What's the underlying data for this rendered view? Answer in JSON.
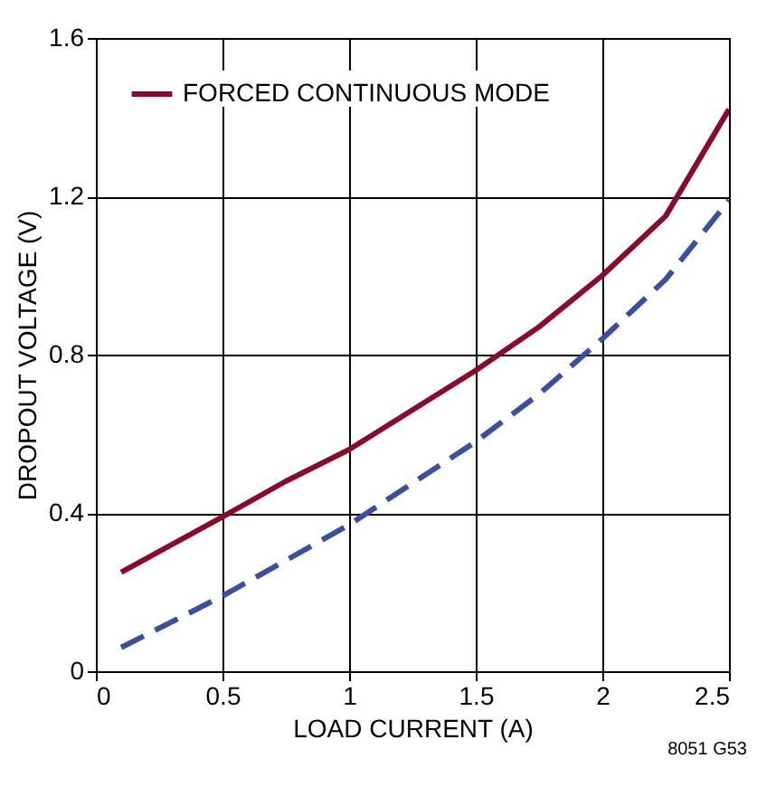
{
  "chart_data": {
    "type": "line",
    "xlabel": "LOAD CURRENT (A)",
    "ylabel": "DROPOUT VOLTAGE (V)",
    "xlim": [
      0,
      2.5
    ],
    "xticks": [
      0,
      0.5,
      1,
      1.5,
      2,
      2.5
    ],
    "ylim": [
      0,
      1.6
    ],
    "yticks": [
      0,
      0.4,
      0.8,
      1.2,
      1.6
    ],
    "grid": true,
    "legend": "top left",
    "series": [
      {
        "name": "FORCED CONTINUOUS MODE",
        "color": "#8b0a2a",
        "line_style": "solid",
        "x": [
          0.1,
          0.5,
          0.75,
          1,
          1.25,
          1.5,
          1.75,
          2,
          2.25,
          2.5
        ],
        "values": [
          0.25,
          0.39,
          0.48,
          0.56,
          0.66,
          0.76,
          0.87,
          1.0,
          1.15,
          1.42
        ]
      },
      {
        "color": "#3a4fa0",
        "line_style": "dashed",
        "x": [
          0.1,
          0.5,
          1,
          1.5,
          1.75,
          2,
          2.25,
          2.5
        ],
        "values": [
          0.06,
          0.19,
          0.37,
          0.58,
          0.7,
          0.84,
          0.99,
          1.19
        ]
      }
    ],
    "annotations": [
      "8051 G53"
    ]
  }
}
